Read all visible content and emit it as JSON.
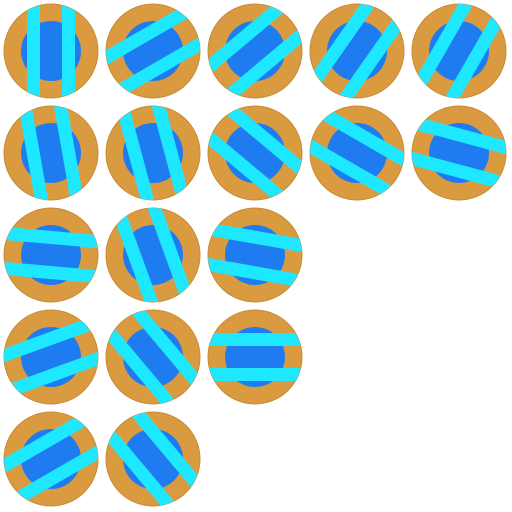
{
  "colors": {
    "background": "#ffffff",
    "outer": "#d99a40",
    "outer_edge": "#c88a35",
    "inner": "#1e7cf0",
    "stripe": "#1ee8ff"
  },
  "rows": [
    {
      "angles": [
        90,
        30,
        40,
        55,
        60
      ]
    },
    {
      "angles": [
        100,
        105,
        140,
        150,
        165
      ]
    },
    {
      "angles": [
        175,
        110,
        170
      ]
    },
    {
      "angles": [
        20,
        130,
        180
      ]
    },
    {
      "angles": [
        30,
        130
      ]
    }
  ]
}
